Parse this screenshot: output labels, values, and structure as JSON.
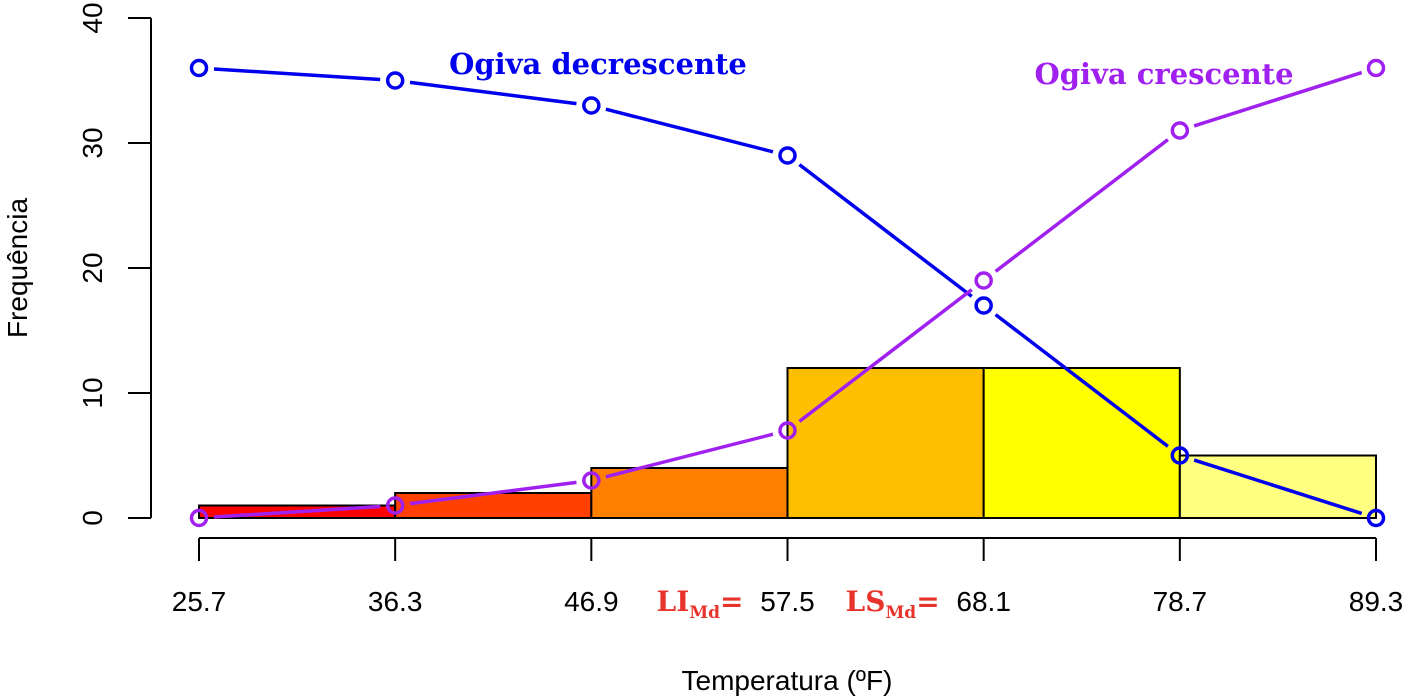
{
  "chart_data": {
    "type": "bar",
    "title": "",
    "xlabel": "Temperatura (ºF)",
    "ylabel": "Frequência",
    "ylim": [
      0,
      40
    ],
    "yticks": [
      0,
      10,
      20,
      30,
      40
    ],
    "grid": false,
    "x_breaks": [
      25.7,
      36.3,
      46.9,
      57.5,
      68.1,
      78.7,
      89.3
    ],
    "x_tick_labels": [
      "25.7",
      "36.3",
      "46.9",
      "57.5",
      "68.1",
      "78.7",
      "89.3"
    ],
    "histogram": {
      "frequencies": [
        1,
        2,
        4,
        12,
        12,
        5
      ],
      "colors": [
        "#ff0000",
        "#ff4000",
        "#ff8000",
        "#ffbf00",
        "#ffff00",
        "#ffff80"
      ]
    },
    "series": [
      {
        "name": "Ogiva decrescente",
        "type": "line",
        "color": "#0000ee",
        "x": [
          25.7,
          36.3,
          46.9,
          57.5,
          68.1,
          78.7,
          89.3
        ],
        "values": [
          36,
          35,
          33,
          29,
          17,
          5,
          0
        ]
      },
      {
        "name": "Ogiva crescente",
        "type": "line",
        "color": "#a020f0",
        "x": [
          25.7,
          36.3,
          46.9,
          57.5,
          68.1,
          78.7,
          89.3
        ],
        "values": [
          0,
          1,
          3,
          7,
          19,
          31,
          36
        ]
      }
    ],
    "annotations": [
      {
        "main": "LI",
        "sub": "Md",
        "suffix": "=",
        "color": "#e8332c",
        "at_tick": "57.5"
      },
      {
        "main": "LS",
        "sub": "Md",
        "suffix": "=",
        "color": "#e8332c",
        "at_tick": "68.1"
      }
    ]
  }
}
